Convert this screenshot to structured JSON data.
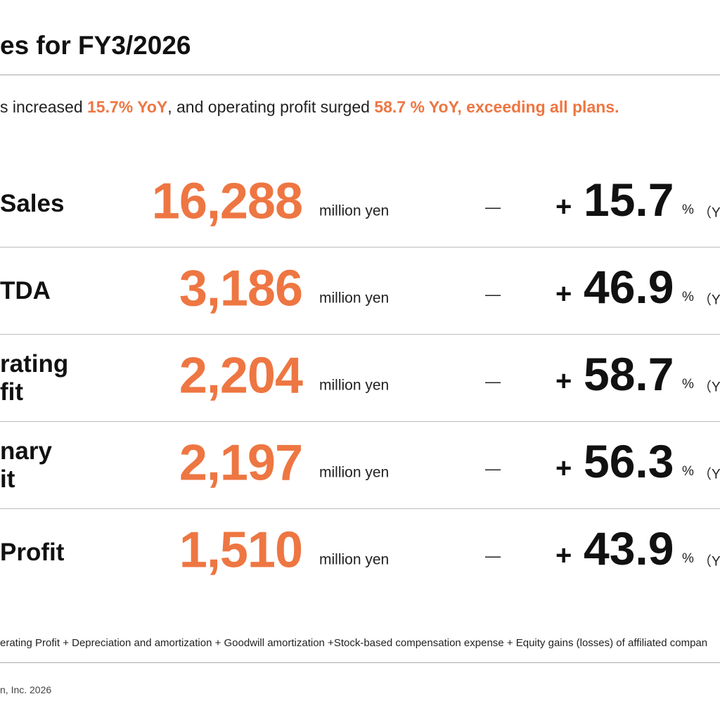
{
  "header": {
    "title": "es for FY3/2026"
  },
  "summary": {
    "part1": "s increased ",
    "hl1": "15.7% YoY",
    "part2": ", and operating profit surged ",
    "hl2": "58.7 % YoY, exceeding all plans."
  },
  "rows": [
    {
      "label": "Sales",
      "value": "16,288",
      "unit": "million yen",
      "dash": "—",
      "plus": "+",
      "pct": "15.7",
      "pct_sign": "%",
      "paren": "（Y"
    },
    {
      "label": "TDA",
      "value": "3,186",
      "unit": "million yen",
      "dash": "—",
      "plus": "+",
      "pct": "46.9",
      "pct_sign": "%",
      "paren": "（Y"
    },
    {
      "label": "rating\nfit",
      "value": "2,204",
      "unit": "million yen",
      "dash": "—",
      "plus": "+",
      "pct": "58.7",
      "pct_sign": "%",
      "paren": "（Y"
    },
    {
      "label": "nary\nit",
      "value": "2,197",
      "unit": "million yen",
      "dash": "—",
      "plus": "+",
      "pct": "56.3",
      "pct_sign": "%",
      "paren": "（Y"
    },
    {
      "label": "Profit",
      "value": "1,510",
      "unit": "million yen",
      "dash": "—",
      "plus": "+",
      "pct": "43.9",
      "pct_sign": "%",
      "paren": "（Y"
    }
  ],
  "footnote": "erating Profit + Depreciation and amortization + Goodwill amortization +Stock-based compensation expense + Equity gains (losses) of affiliated compan",
  "copyright": "n, Inc. 2026",
  "colors": {
    "accent": "#ee7642",
    "text": "#111111",
    "rule": "#a8a8a8"
  }
}
